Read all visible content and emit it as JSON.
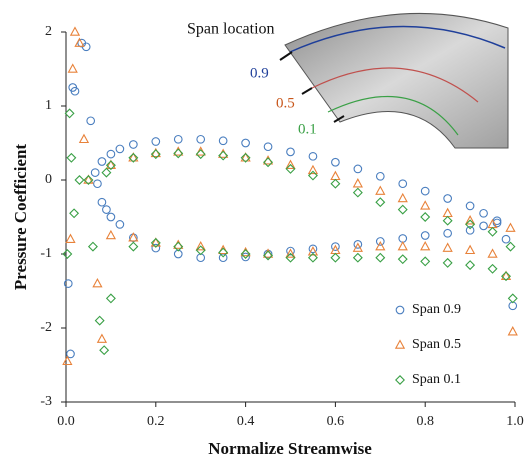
{
  "chart_data": {
    "type": "scatter",
    "xlabel": "Normalize Streamwise",
    "ylabel": "Pressure Coefficient",
    "xlim": [
      0,
      1
    ],
    "ylim": [
      -3,
      2
    ],
    "xticks": [
      {
        "value": 0,
        "label": "0.0"
      },
      0.2,
      0.4,
      0.6,
      0.8,
      {
        "value": 1,
        "label": "1.0"
      }
    ],
    "yticks": [
      2,
      1,
      0,
      -1,
      -2,
      -3
    ],
    "legend": "lower right",
    "annotations": [
      "Span location",
      "0.9",
      "0.5",
      "0.1"
    ],
    "annotation_colors": [
      "#111111",
      "#1f3f9a",
      "#c8561a",
      "#3aa046"
    ],
    "series": [
      {
        "name": "Span 0.9",
        "color": "#4a7ebf",
        "marker": "circle",
        "x": [
          0.005,
          0.01,
          0.015,
          0.02,
          0.035,
          0.045,
          0.055,
          0.065,
          0.08,
          0.1,
          0.12,
          0.15,
          0.2,
          0.25,
          0.3,
          0.35,
          0.4,
          0.45,
          0.5,
          0.55,
          0.6,
          0.65,
          0.7,
          0.75,
          0.8,
          0.85,
          0.9,
          0.93,
          0.96,
          0.98,
          0.995,
          0.07,
          0.08,
          0.09,
          0.1,
          0.12,
          0.15,
          0.2,
          0.25,
          0.3,
          0.35,
          0.4,
          0.45,
          0.5,
          0.55,
          0.6,
          0.65,
          0.7,
          0.75,
          0.8,
          0.85,
          0.9,
          0.93,
          0.96
        ],
        "values": [
          -1.4,
          -2.35,
          1.25,
          1.2,
          1.85,
          1.8,
          0.8,
          0.1,
          0.25,
          0.35,
          0.42,
          0.48,
          0.52,
          0.55,
          0.55,
          0.53,
          0.5,
          0.45,
          0.38,
          0.32,
          0.24,
          0.15,
          0.05,
          -0.05,
          -0.15,
          -0.25,
          -0.35,
          -0.45,
          -0.55,
          -0.8,
          -1.7,
          -0.05,
          -0.3,
          -0.4,
          -0.5,
          -0.6,
          -0.78,
          -0.92,
          -1.0,
          -1.05,
          -1.05,
          -1.04,
          -1.0,
          -0.96,
          -0.93,
          -0.9,
          -0.87,
          -0.83,
          -0.79,
          -0.75,
          -0.72,
          -0.68,
          -0.62,
          -0.58
        ]
      },
      {
        "name": "Span 0.5",
        "color": "#e8823a",
        "marker": "triangle",
        "x": [
          0.003,
          0.01,
          0.015,
          0.02,
          0.03,
          0.04,
          0.05,
          0.07,
          0.08,
          0.1,
          0.15,
          0.2,
          0.25,
          0.3,
          0.35,
          0.4,
          0.45,
          0.5,
          0.55,
          0.6,
          0.65,
          0.7,
          0.75,
          0.8,
          0.85,
          0.9,
          0.95,
          0.99,
          0.1,
          0.15,
          0.2,
          0.25,
          0.3,
          0.35,
          0.4,
          0.45,
          0.5,
          0.55,
          0.6,
          0.65,
          0.7,
          0.75,
          0.8,
          0.85,
          0.9,
          0.95,
          0.98,
          0.995
        ],
        "values": [
          -2.45,
          -0.8,
          1.5,
          2.0,
          1.85,
          0.55,
          0.0,
          -1.4,
          -2.15,
          0.2,
          0.3,
          0.36,
          0.38,
          0.38,
          0.35,
          0.3,
          0.26,
          0.2,
          0.13,
          0.05,
          -0.05,
          -0.15,
          -0.25,
          -0.35,
          -0.45,
          -0.55,
          -0.6,
          -0.65,
          -0.75,
          -0.78,
          -0.85,
          -0.88,
          -0.9,
          -0.95,
          -0.98,
          -1.0,
          -1.0,
          -0.97,
          -0.95,
          -0.92,
          -0.9,
          -0.9,
          -0.9,
          -0.92,
          -0.95,
          -1.0,
          -1.3,
          -2.05
        ]
      },
      {
        "name": "Span 0.1",
        "color": "#3aa046",
        "marker": "diamond",
        "x": [
          0.003,
          0.008,
          0.012,
          0.018,
          0.03,
          0.05,
          0.06,
          0.075,
          0.085,
          0.09,
          0.1,
          0.15,
          0.2,
          0.25,
          0.3,
          0.35,
          0.4,
          0.45,
          0.5,
          0.55,
          0.6,
          0.65,
          0.7,
          0.75,
          0.8,
          0.85,
          0.9,
          0.95,
          0.99,
          0.1,
          0.15,
          0.2,
          0.25,
          0.3,
          0.35,
          0.4,
          0.45,
          0.5,
          0.55,
          0.6,
          0.65,
          0.7,
          0.75,
          0.8,
          0.85,
          0.9,
          0.95,
          0.98,
          0.995
        ],
        "values": [
          -1.0,
          0.9,
          0.3,
          -0.45,
          0.0,
          0.0,
          -0.9,
          -1.9,
          -2.3,
          0.1,
          0.2,
          0.3,
          0.35,
          0.36,
          0.35,
          0.33,
          0.3,
          0.24,
          0.15,
          0.06,
          -0.05,
          -0.17,
          -0.3,
          -0.4,
          -0.5,
          -0.55,
          -0.6,
          -0.7,
          -0.9,
          -1.6,
          -0.9,
          -0.85,
          -0.9,
          -0.95,
          -0.98,
          -1.0,
          -1.02,
          -1.05,
          -1.05,
          -1.05,
          -1.05,
          -1.05,
          -1.07,
          -1.1,
          -1.12,
          -1.15,
          -1.2,
          -1.3,
          -1.6
        ]
      }
    ]
  }
}
